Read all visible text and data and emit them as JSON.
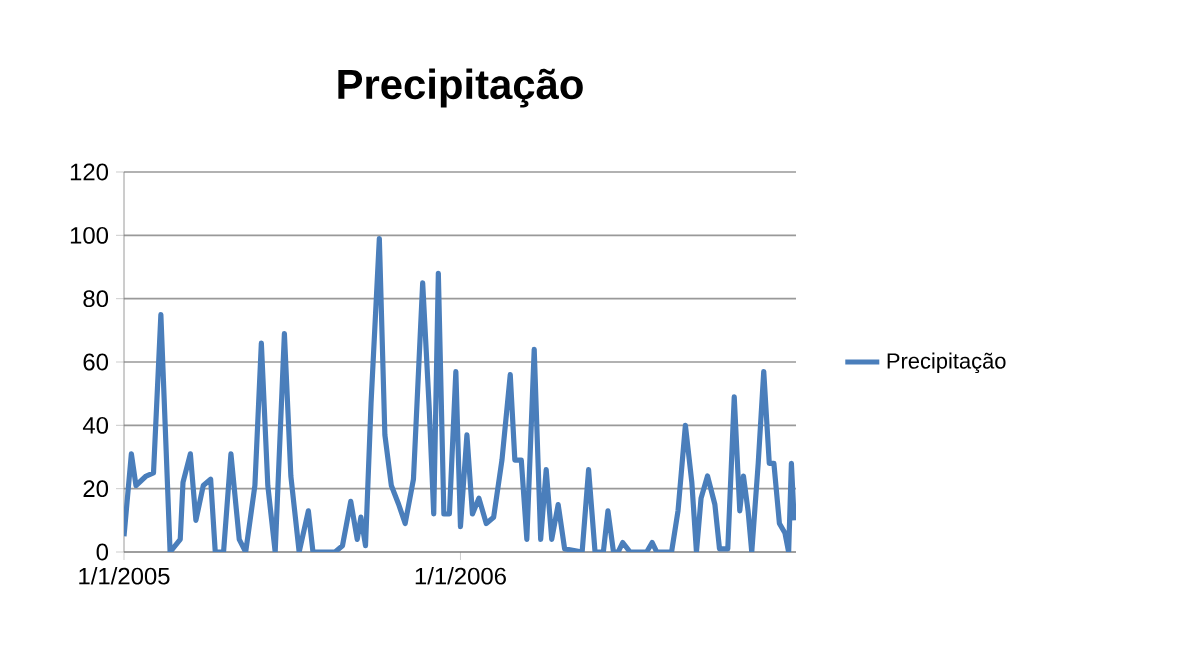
{
  "chart_data": {
    "type": "line",
    "title": "Precipitação",
    "x": [
      "2005-01-01",
      "2005-01-09",
      "2005-01-14",
      "2005-01-25",
      "2005-02-02",
      "2005-02-10",
      "2005-02-20",
      "2005-03-03",
      "2005-03-06",
      "2005-03-14",
      "2005-03-20",
      "2005-03-28",
      "2005-04-05",
      "2005-04-10",
      "2005-04-19",
      "2005-04-27",
      "2005-05-06",
      "2005-05-13",
      "2005-05-23",
      "2005-05-30",
      "2005-06-06",
      "2005-06-14",
      "2005-06-24",
      "2005-07-01",
      "2005-07-10",
      "2005-07-20",
      "2005-07-25",
      "2005-08-18",
      "2005-08-26",
      "2005-09-04",
      "2005-09-11",
      "2005-09-15",
      "2005-09-20",
      "2005-09-26",
      "2005-10-05",
      "2005-10-11",
      "2005-10-18",
      "2005-10-26",
      "2005-11-02",
      "2005-11-11",
      "2005-11-21",
      "2005-11-28",
      "2005-12-03",
      "2005-12-08",
      "2005-12-14",
      "2005-12-20",
      "2005-12-27",
      "2006-01-01",
      "2006-01-08",
      "2006-01-14",
      "2006-01-21",
      "2006-01-29",
      "2006-02-06",
      "2006-02-15",
      "2006-02-24",
      "2006-03-01",
      "2006-03-08",
      "2006-03-14",
      "2006-03-22",
      "2006-03-29",
      "2006-04-04",
      "2006-04-10",
      "2006-04-17",
      "2006-04-24",
      "2006-05-13",
      "2006-05-20",
      "2006-05-27",
      "2006-06-05",
      "2006-06-10",
      "2006-06-16",
      "2006-06-21",
      "2006-06-26",
      "2006-07-04",
      "2006-07-22",
      "2006-07-28",
      "2006-08-02",
      "2006-08-18",
      "2006-08-25",
      "2006-09-02",
      "2006-09-09",
      "2006-09-14",
      "2006-09-19",
      "2006-09-26",
      "2006-10-04",
      "2006-10-09",
      "2006-10-18",
      "2006-10-25",
      "2006-10-31",
      "2006-11-04",
      "2006-11-09",
      "2006-11-13",
      "2006-11-20",
      "2006-11-26",
      "2006-12-02",
      "2006-12-07",
      "2006-12-13",
      "2006-12-19",
      "2006-12-23",
      "2006-12-26",
      "2006-12-29"
    ],
    "series": [
      {
        "name": "Precipitação",
        "color": "#4a7ebb",
        "values": [
          5,
          31,
          21,
          24,
          25,
          75,
          0,
          4,
          22,
          31,
          10,
          21,
          23,
          0,
          0,
          31,
          4,
          0,
          21,
          66,
          21,
          0,
          69,
          24,
          0,
          13,
          0,
          0,
          2,
          16,
          4,
          11,
          2,
          47,
          99,
          37,
          21,
          15,
          9,
          23,
          85,
          46,
          12,
          88,
          12,
          12,
          57,
          8,
          37,
          12,
          17,
          9,
          11,
          29,
          56,
          29,
          29,
          4,
          64,
          4,
          26,
          4,
          15,
          1,
          0,
          26,
          0,
          0,
          13,
          0,
          0,
          3,
          0,
          0,
          3,
          0,
          0,
          13,
          40,
          22,
          0,
          17,
          24,
          15,
          1,
          1,
          49,
          13,
          24,
          13,
          0,
          28,
          57,
          28,
          28,
          9,
          6,
          0,
          28,
          10
        ]
      }
    ],
    "xlim": [
      "2005-01-01",
      "2006-12-31"
    ],
    "xticks": [
      {
        "value": "2005-01-01",
        "label": "1/1/2005"
      },
      {
        "value": "2006-01-01",
        "label": "1/1/2006"
      }
    ],
    "ylim": [
      0,
      120
    ],
    "yticks": [
      0,
      20,
      40,
      60,
      80,
      100,
      120
    ],
    "grid": "y",
    "legend": "right"
  }
}
